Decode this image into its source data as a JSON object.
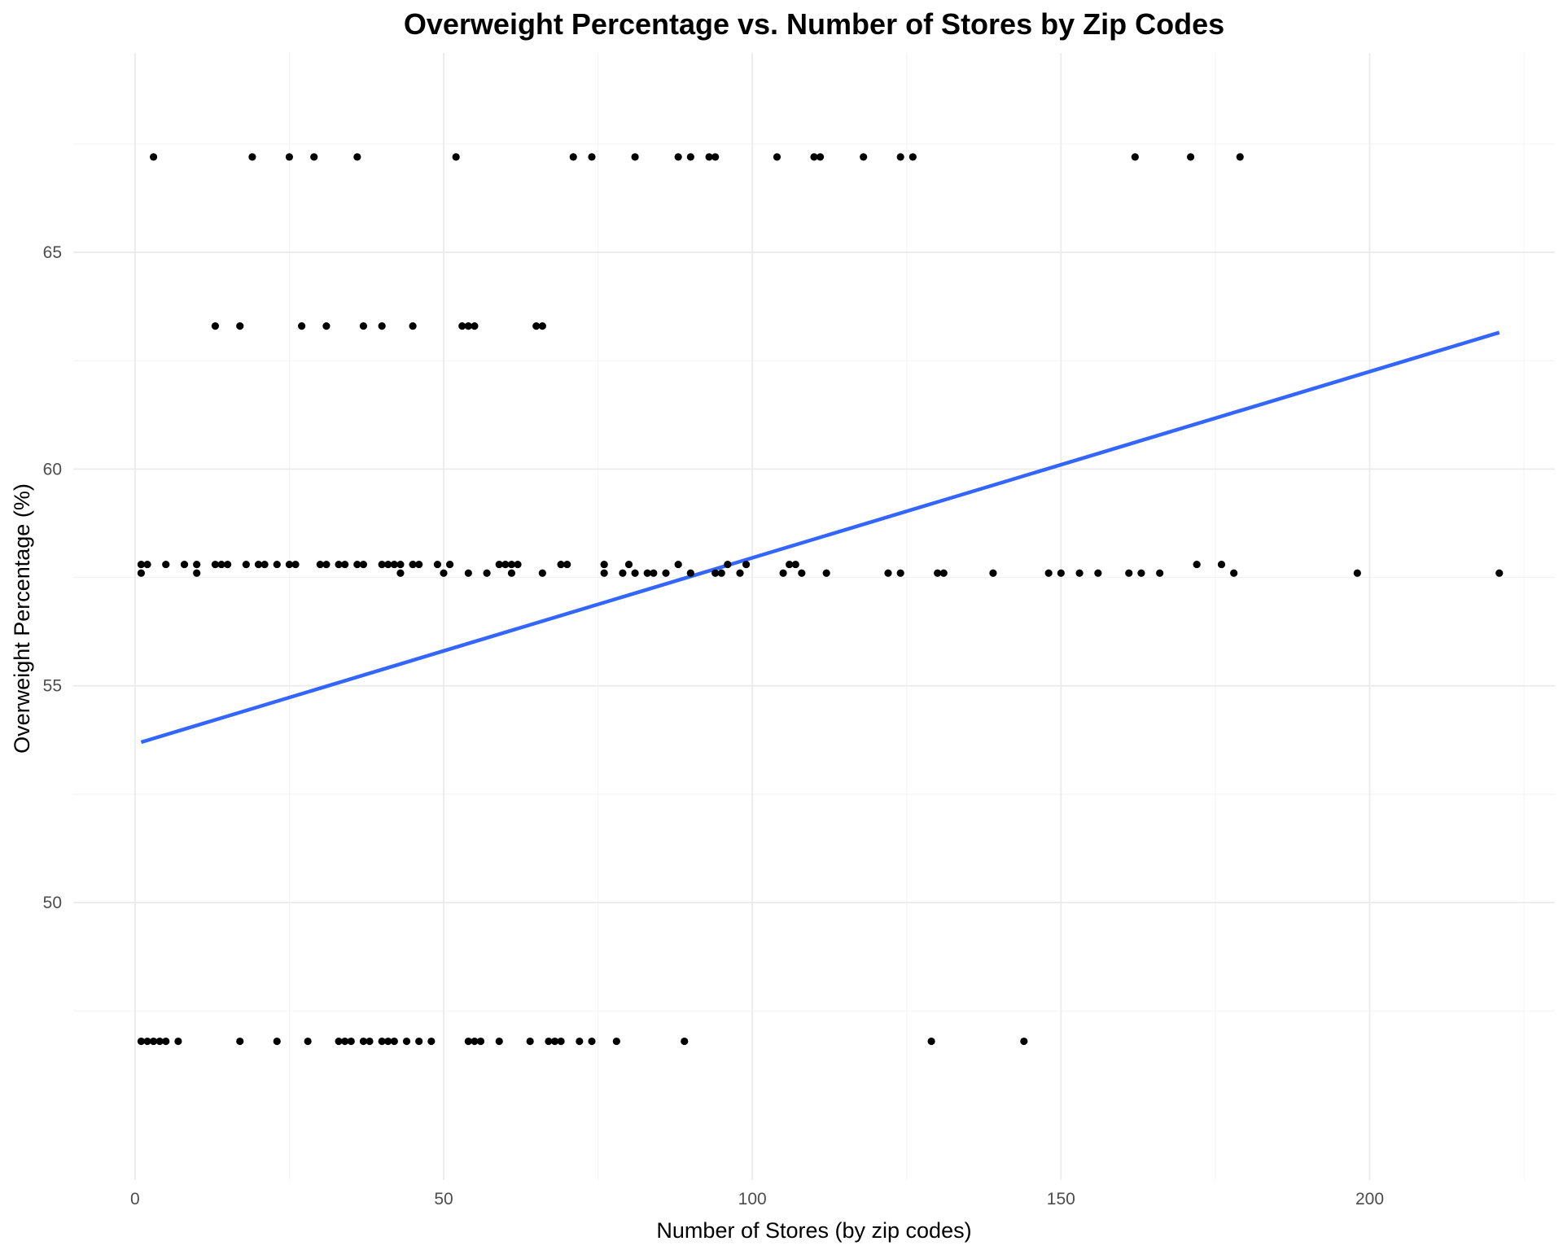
{
  "chart_data": {
    "type": "scatter",
    "title": "Overweight Percentage vs. Number of Stores by Zip Codes",
    "xlabel": "Number of Stores (by zip codes)",
    "ylabel": "Overweight Percentage (%)",
    "xlim": [
      -10,
      230
    ],
    "ylim": [
      43.6,
      69.6
    ],
    "x_ticks": [
      0,
      50,
      100,
      150,
      200
    ],
    "x_minor_ticks": [
      25,
      75,
      125,
      175,
      225
    ],
    "y_ticks": [
      50,
      55,
      60,
      65
    ],
    "y_minor_ticks": [
      47.5,
      52.5,
      57.5,
      62.5,
      67.5
    ],
    "grid": true,
    "point_color": "#000000",
    "trend_color": "#3366FF",
    "points": [
      {
        "x": 3,
        "y": 67.2
      },
      {
        "x": 19,
        "y": 67.2
      },
      {
        "x": 25,
        "y": 67.2
      },
      {
        "x": 29,
        "y": 67.2
      },
      {
        "x": 36,
        "y": 67.2
      },
      {
        "x": 52,
        "y": 67.2
      },
      {
        "x": 71,
        "y": 67.2
      },
      {
        "x": 74,
        "y": 67.2
      },
      {
        "x": 81,
        "y": 67.2
      },
      {
        "x": 88,
        "y": 67.2
      },
      {
        "x": 90,
        "y": 67.2
      },
      {
        "x": 93,
        "y": 67.2
      },
      {
        "x": 94,
        "y": 67.2
      },
      {
        "x": 104,
        "y": 67.2
      },
      {
        "x": 110,
        "y": 67.2
      },
      {
        "x": 111,
        "y": 67.2
      },
      {
        "x": 118,
        "y": 67.2
      },
      {
        "x": 124,
        "y": 67.2
      },
      {
        "x": 126,
        "y": 67.2
      },
      {
        "x": 162,
        "y": 67.2
      },
      {
        "x": 171,
        "y": 67.2
      },
      {
        "x": 179,
        "y": 67.2
      },
      {
        "x": 13,
        "y": 63.3
      },
      {
        "x": 17,
        "y": 63.3
      },
      {
        "x": 27,
        "y": 63.3
      },
      {
        "x": 31,
        "y": 63.3
      },
      {
        "x": 37,
        "y": 63.3
      },
      {
        "x": 40,
        "y": 63.3
      },
      {
        "x": 45,
        "y": 63.3
      },
      {
        "x": 53,
        "y": 63.3
      },
      {
        "x": 54,
        "y": 63.3
      },
      {
        "x": 55,
        "y": 63.3
      },
      {
        "x": 65,
        "y": 63.3
      },
      {
        "x": 66,
        "y": 63.3
      },
      {
        "x": 1,
        "y": 57.8
      },
      {
        "x": 2,
        "y": 57.8
      },
      {
        "x": 5,
        "y": 57.8
      },
      {
        "x": 8,
        "y": 57.8
      },
      {
        "x": 10,
        "y": 57.8
      },
      {
        "x": 13,
        "y": 57.8
      },
      {
        "x": 14,
        "y": 57.8
      },
      {
        "x": 15,
        "y": 57.8
      },
      {
        "x": 18,
        "y": 57.8
      },
      {
        "x": 20,
        "y": 57.8
      },
      {
        "x": 21,
        "y": 57.8
      },
      {
        "x": 23,
        "y": 57.8
      },
      {
        "x": 25,
        "y": 57.8
      },
      {
        "x": 26,
        "y": 57.8
      },
      {
        "x": 30,
        "y": 57.8
      },
      {
        "x": 31,
        "y": 57.8
      },
      {
        "x": 33,
        "y": 57.8
      },
      {
        "x": 34,
        "y": 57.8
      },
      {
        "x": 36,
        "y": 57.8
      },
      {
        "x": 37,
        "y": 57.8
      },
      {
        "x": 40,
        "y": 57.8
      },
      {
        "x": 41,
        "y": 57.8
      },
      {
        "x": 42,
        "y": 57.8
      },
      {
        "x": 43,
        "y": 57.8
      },
      {
        "x": 45,
        "y": 57.8
      },
      {
        "x": 46,
        "y": 57.8
      },
      {
        "x": 49,
        "y": 57.8
      },
      {
        "x": 51,
        "y": 57.8
      },
      {
        "x": 59,
        "y": 57.8
      },
      {
        "x": 60,
        "y": 57.8
      },
      {
        "x": 61,
        "y": 57.8
      },
      {
        "x": 62,
        "y": 57.8
      },
      {
        "x": 69,
        "y": 57.8
      },
      {
        "x": 70,
        "y": 57.8
      },
      {
        "x": 76,
        "y": 57.8
      },
      {
        "x": 80,
        "y": 57.8
      },
      {
        "x": 88,
        "y": 57.8
      },
      {
        "x": 96,
        "y": 57.8
      },
      {
        "x": 99,
        "y": 57.8
      },
      {
        "x": 106,
        "y": 57.8
      },
      {
        "x": 107,
        "y": 57.8
      },
      {
        "x": 172,
        "y": 57.8
      },
      {
        "x": 176,
        "y": 57.8
      },
      {
        "x": 1,
        "y": 57.6
      },
      {
        "x": 10,
        "y": 57.6
      },
      {
        "x": 43,
        "y": 57.6
      },
      {
        "x": 50,
        "y": 57.6
      },
      {
        "x": 54,
        "y": 57.6
      },
      {
        "x": 57,
        "y": 57.6
      },
      {
        "x": 61,
        "y": 57.6
      },
      {
        "x": 66,
        "y": 57.6
      },
      {
        "x": 76,
        "y": 57.6
      },
      {
        "x": 79,
        "y": 57.6
      },
      {
        "x": 81,
        "y": 57.6
      },
      {
        "x": 83,
        "y": 57.6
      },
      {
        "x": 84,
        "y": 57.6
      },
      {
        "x": 86,
        "y": 57.6
      },
      {
        "x": 90,
        "y": 57.6
      },
      {
        "x": 94,
        "y": 57.6
      },
      {
        "x": 95,
        "y": 57.6
      },
      {
        "x": 98,
        "y": 57.6
      },
      {
        "x": 105,
        "y": 57.6
      },
      {
        "x": 108,
        "y": 57.6
      },
      {
        "x": 112,
        "y": 57.6
      },
      {
        "x": 122,
        "y": 57.6
      },
      {
        "x": 124,
        "y": 57.6
      },
      {
        "x": 130,
        "y": 57.6
      },
      {
        "x": 131,
        "y": 57.6
      },
      {
        "x": 139,
        "y": 57.6
      },
      {
        "x": 148,
        "y": 57.6
      },
      {
        "x": 150,
        "y": 57.6
      },
      {
        "x": 153,
        "y": 57.6
      },
      {
        "x": 156,
        "y": 57.6
      },
      {
        "x": 161,
        "y": 57.6
      },
      {
        "x": 163,
        "y": 57.6
      },
      {
        "x": 166,
        "y": 57.6
      },
      {
        "x": 178,
        "y": 57.6
      },
      {
        "x": 198,
        "y": 57.6
      },
      {
        "x": 221,
        "y": 57.6
      },
      {
        "x": 1,
        "y": 46.8
      },
      {
        "x": 2,
        "y": 46.8
      },
      {
        "x": 3,
        "y": 46.8
      },
      {
        "x": 4,
        "y": 46.8
      },
      {
        "x": 5,
        "y": 46.8
      },
      {
        "x": 7,
        "y": 46.8
      },
      {
        "x": 17,
        "y": 46.8
      },
      {
        "x": 23,
        "y": 46.8
      },
      {
        "x": 28,
        "y": 46.8
      },
      {
        "x": 33,
        "y": 46.8
      },
      {
        "x": 34,
        "y": 46.8
      },
      {
        "x": 35,
        "y": 46.8
      },
      {
        "x": 37,
        "y": 46.8
      },
      {
        "x": 38,
        "y": 46.8
      },
      {
        "x": 40,
        "y": 46.8
      },
      {
        "x": 41,
        "y": 46.8
      },
      {
        "x": 42,
        "y": 46.8
      },
      {
        "x": 44,
        "y": 46.8
      },
      {
        "x": 46,
        "y": 46.8
      },
      {
        "x": 48,
        "y": 46.8
      },
      {
        "x": 54,
        "y": 46.8
      },
      {
        "x": 55,
        "y": 46.8
      },
      {
        "x": 56,
        "y": 46.8
      },
      {
        "x": 59,
        "y": 46.8
      },
      {
        "x": 64,
        "y": 46.8
      },
      {
        "x": 67,
        "y": 46.8
      },
      {
        "x": 68,
        "y": 46.8
      },
      {
        "x": 69,
        "y": 46.8
      },
      {
        "x": 72,
        "y": 46.8
      },
      {
        "x": 74,
        "y": 46.8
      },
      {
        "x": 78,
        "y": 46.8
      },
      {
        "x": 89,
        "y": 46.8
      },
      {
        "x": 129,
        "y": 46.8
      },
      {
        "x": 144,
        "y": 46.8
      }
    ],
    "trend_line": {
      "x": [
        1,
        221
      ],
      "y": [
        53.7,
        63.15
      ]
    }
  }
}
